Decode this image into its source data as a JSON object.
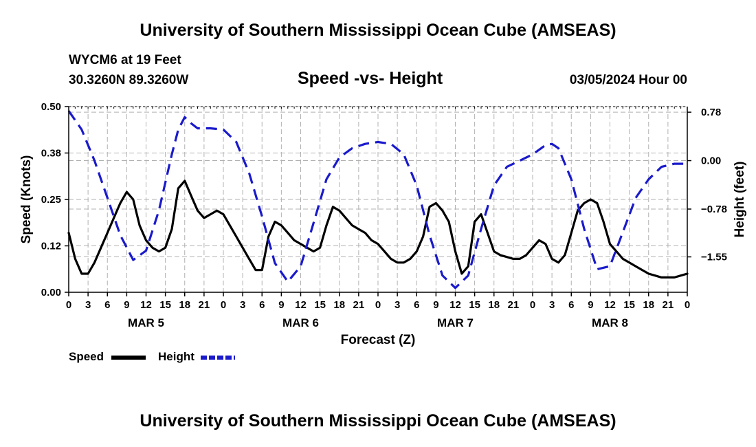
{
  "header": {
    "title": "University of Southern Mississippi Ocean Cube (AMSEAS)",
    "station": "WYCM6 at 19 Feet",
    "coords": "30.3260N  89.3260W",
    "subtitle": "Speed -vs- Height",
    "datetime": "03/05/2024 Hour 00"
  },
  "footer": {
    "title": "University of Southern Mississippi Ocean Cube (AMSEAS)"
  },
  "legend": {
    "speed_label": "Speed",
    "height_label": "Height"
  },
  "colors": {
    "speed": "#000000",
    "height": "#1a1acc",
    "grid": "#b0b0b0"
  },
  "chart_data": {
    "type": "line",
    "title": "Speed -vs- Height",
    "xlabel": "Forecast (Z)",
    "ylabel": "Speed (Knots)",
    "y2label": "Height (feet)",
    "x_range_hours": [
      0,
      96
    ],
    "ylim": [
      0,
      0.5
    ],
    "y2lim": [
      -2.12,
      0.87
    ],
    "yticks": [
      "0.00",
      "0.12",
      "0.25",
      "0.38",
      "0.50"
    ],
    "ytick_values": [
      0,
      0.125,
      0.25,
      0.375,
      0.5
    ],
    "y2ticks": [
      "0.78",
      "0.00",
      "−0.78",
      "−1.55"
    ],
    "y2tick_values": [
      0.78,
      0,
      -0.78,
      -1.55
    ],
    "xticks": [
      "0",
      "3",
      "6",
      "9",
      "12",
      "15",
      "18",
      "21",
      "0",
      "3",
      "6",
      "9",
      "12",
      "15",
      "18",
      "21",
      "0",
      "3",
      "6",
      "9",
      "12",
      "15",
      "18",
      "21",
      "0",
      "3",
      "6",
      "9",
      "12",
      "15",
      "18",
      "21",
      "0"
    ],
    "day_labels": [
      {
        "label": "MAR 5",
        "hour": 12
      },
      {
        "label": "MAR 6",
        "hour": 36
      },
      {
        "label": "MAR 7",
        "hour": 60
      },
      {
        "label": "MAR 8",
        "hour": 84
      }
    ],
    "series": [
      {
        "name": "Speed",
        "axis": "left",
        "style": "solid",
        "points": [
          [
            0,
            0.16
          ],
          [
            1,
            0.09
          ],
          [
            2,
            0.05
          ],
          [
            3,
            0.05
          ],
          [
            4,
            0.08
          ],
          [
            5,
            0.12
          ],
          [
            6,
            0.16
          ],
          [
            7,
            0.2
          ],
          [
            8,
            0.24
          ],
          [
            9,
            0.27
          ],
          [
            10,
            0.25
          ],
          [
            11,
            0.18
          ],
          [
            12,
            0.14
          ],
          [
            13,
            0.12
          ],
          [
            14,
            0.11
          ],
          [
            15,
            0.12
          ],
          [
            16,
            0.17
          ],
          [
            17,
            0.28
          ],
          [
            18,
            0.3
          ],
          [
            19,
            0.26
          ],
          [
            20,
            0.22
          ],
          [
            21,
            0.2
          ],
          [
            22,
            0.21
          ],
          [
            23,
            0.22
          ],
          [
            24,
            0.21
          ],
          [
            25,
            0.18
          ],
          [
            26,
            0.15
          ],
          [
            27,
            0.12
          ],
          [
            28,
            0.09
          ],
          [
            29,
            0.06
          ],
          [
            30,
            0.06
          ],
          [
            31,
            0.15
          ],
          [
            32,
            0.19
          ],
          [
            33,
            0.18
          ],
          [
            34,
            0.16
          ],
          [
            35,
            0.14
          ],
          [
            36,
            0.13
          ],
          [
            37,
            0.12
          ],
          [
            38,
            0.11
          ],
          [
            39,
            0.12
          ],
          [
            40,
            0.18
          ],
          [
            41,
            0.23
          ],
          [
            42,
            0.22
          ],
          [
            43,
            0.2
          ],
          [
            44,
            0.18
          ],
          [
            45,
            0.17
          ],
          [
            46,
            0.16
          ],
          [
            47,
            0.14
          ],
          [
            48,
            0.13
          ],
          [
            49,
            0.11
          ],
          [
            50,
            0.09
          ],
          [
            51,
            0.08
          ],
          [
            52,
            0.08
          ],
          [
            53,
            0.09
          ],
          [
            54,
            0.11
          ],
          [
            55,
            0.15
          ],
          [
            56,
            0.23
          ],
          [
            57,
            0.24
          ],
          [
            58,
            0.22
          ],
          [
            59,
            0.19
          ],
          [
            60,
            0.11
          ],
          [
            61,
            0.05
          ],
          [
            62,
            0.07
          ],
          [
            63,
            0.19
          ],
          [
            64,
            0.21
          ],
          [
            65,
            0.16
          ],
          [
            66,
            0.11
          ],
          [
            67,
            0.1
          ],
          [
            68,
            0.095
          ],
          [
            69,
            0.09
          ],
          [
            70,
            0.09
          ],
          [
            71,
            0.1
          ],
          [
            72,
            0.12
          ],
          [
            73,
            0.14
          ],
          [
            74,
            0.13
          ],
          [
            75,
            0.09
          ],
          [
            76,
            0.08
          ],
          [
            77,
            0.1
          ],
          [
            78,
            0.16
          ],
          [
            79,
            0.22
          ],
          [
            80,
            0.24
          ],
          [
            81,
            0.25
          ],
          [
            82,
            0.24
          ],
          [
            83,
            0.19
          ],
          [
            84,
            0.13
          ],
          [
            85,
            0.11
          ],
          [
            86,
            0.09
          ],
          [
            87,
            0.08
          ],
          [
            88,
            0.07
          ],
          [
            89,
            0.06
          ],
          [
            90,
            0.05
          ],
          [
            91,
            0.045
          ],
          [
            92,
            0.04
          ],
          [
            93,
            0.04
          ],
          [
            94,
            0.04
          ],
          [
            95,
            0.045
          ],
          [
            96,
            0.05
          ]
        ]
      },
      {
        "name": "Height",
        "axis": "right",
        "style": "dashed",
        "points": [
          [
            0,
            0.8
          ],
          [
            2,
            0.5
          ],
          [
            4,
            0.0
          ],
          [
            6,
            -0.6
          ],
          [
            8,
            -1.2
          ],
          [
            10,
            -1.6
          ],
          [
            12,
            -1.45
          ],
          [
            14,
            -0.8
          ],
          [
            16,
            0.1
          ],
          [
            17,
            0.5
          ],
          [
            18,
            0.7
          ],
          [
            19,
            0.6
          ],
          [
            20,
            0.52
          ],
          [
            22,
            0.52
          ],
          [
            24,
            0.5
          ],
          [
            26,
            0.3
          ],
          [
            28,
            -0.2
          ],
          [
            30,
            -0.9
          ],
          [
            32,
            -1.65
          ],
          [
            34,
            -1.95
          ],
          [
            36,
            -1.7
          ],
          [
            38,
            -1.0
          ],
          [
            40,
            -0.3
          ],
          [
            42,
            0.05
          ],
          [
            44,
            0.2
          ],
          [
            46,
            0.27
          ],
          [
            48,
            0.3
          ],
          [
            50,
            0.27
          ],
          [
            52,
            0.1
          ],
          [
            54,
            -0.4
          ],
          [
            56,
            -1.2
          ],
          [
            58,
            -1.85
          ],
          [
            60,
            -2.05
          ],
          [
            62,
            -1.85
          ],
          [
            64,
            -1.1
          ],
          [
            66,
            -0.4
          ],
          [
            68,
            -0.1
          ],
          [
            70,
            0.0
          ],
          [
            72,
            0.1
          ],
          [
            74,
            0.25
          ],
          [
            75,
            0.27
          ],
          [
            76,
            0.2
          ],
          [
            78,
            -0.3
          ],
          [
            80,
            -1.1
          ],
          [
            82,
            -1.75
          ],
          [
            84,
            -1.7
          ],
          [
            86,
            -1.15
          ],
          [
            88,
            -0.6
          ],
          [
            90,
            -0.3
          ],
          [
            92,
            -0.1
          ],
          [
            94,
            -0.05
          ],
          [
            96,
            -0.05
          ]
        ]
      }
    ]
  }
}
